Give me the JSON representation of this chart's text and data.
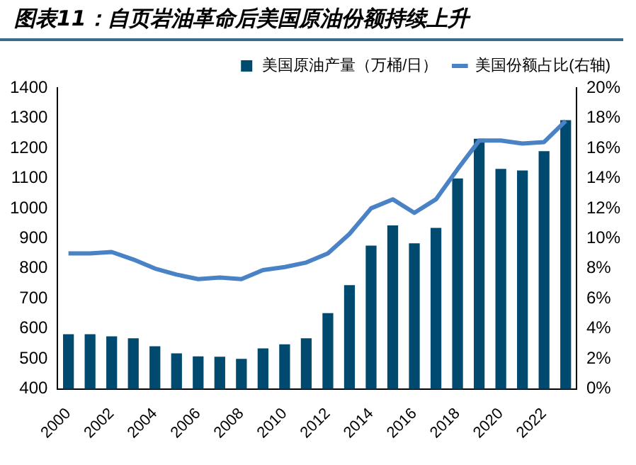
{
  "chart_data": {
    "type": "bar",
    "title": "图表11：自页岩油革命后美国原油份额持续上升",
    "categories": [
      "2000",
      null,
      "2002",
      null,
      "2004",
      null,
      "2006",
      null,
      "2008",
      null,
      "2010",
      null,
      "2012",
      null,
      "2014",
      null,
      "2016",
      null,
      "2018",
      null,
      "2020",
      null,
      "2022",
      null
    ],
    "series": [
      {
        "name": "美国原油产量（万桶/日）",
        "color": "#004a70",
        "values": [
          582,
          582,
          575,
          568,
          542,
          518,
          508,
          507,
          500,
          535,
          548,
          568,
          652,
          745,
          876,
          943,
          884,
          935,
          1099,
          1231,
          1131,
          1126,
          1190,
          1293
        ]
      },
      {
        "name": "美国份额占比(右轴)",
        "type": "line",
        "axis": "y2",
        "color": "#4a82c6",
        "values": [
          9.0,
          9.0,
          9.1,
          8.6,
          8.0,
          7.6,
          7.3,
          7.4,
          7.3,
          7.9,
          8.1,
          8.4,
          9.0,
          10.3,
          12.0,
          12.6,
          11.7,
          12.6,
          14.6,
          16.5,
          16.5,
          16.3,
          16.4,
          17.8
        ]
      }
    ],
    "ylim": [
      400,
      1400
    ],
    "yticks": [
      400,
      500,
      600,
      700,
      800,
      900,
      1000,
      1100,
      1200,
      1300,
      1400
    ],
    "y2lim": [
      0,
      20
    ],
    "y2ticks": [
      {
        "value": 0,
        "label": "0%"
      },
      {
        "value": 2,
        "label": "2%"
      },
      {
        "value": 4,
        "label": "4%"
      },
      {
        "value": 6,
        "label": "6%"
      },
      {
        "value": 8,
        "label": "8%"
      },
      {
        "value": 10,
        "label": "10%"
      },
      {
        "value": 12,
        "label": "12%"
      },
      {
        "value": 14,
        "label": "14%"
      },
      {
        "value": 16,
        "label": "16%"
      },
      {
        "value": 18,
        "label": "18%"
      },
      {
        "value": 20,
        "label": "20%"
      }
    ],
    "legend": "top",
    "grid": false,
    "marker": "none",
    "line_style": "solid"
  }
}
